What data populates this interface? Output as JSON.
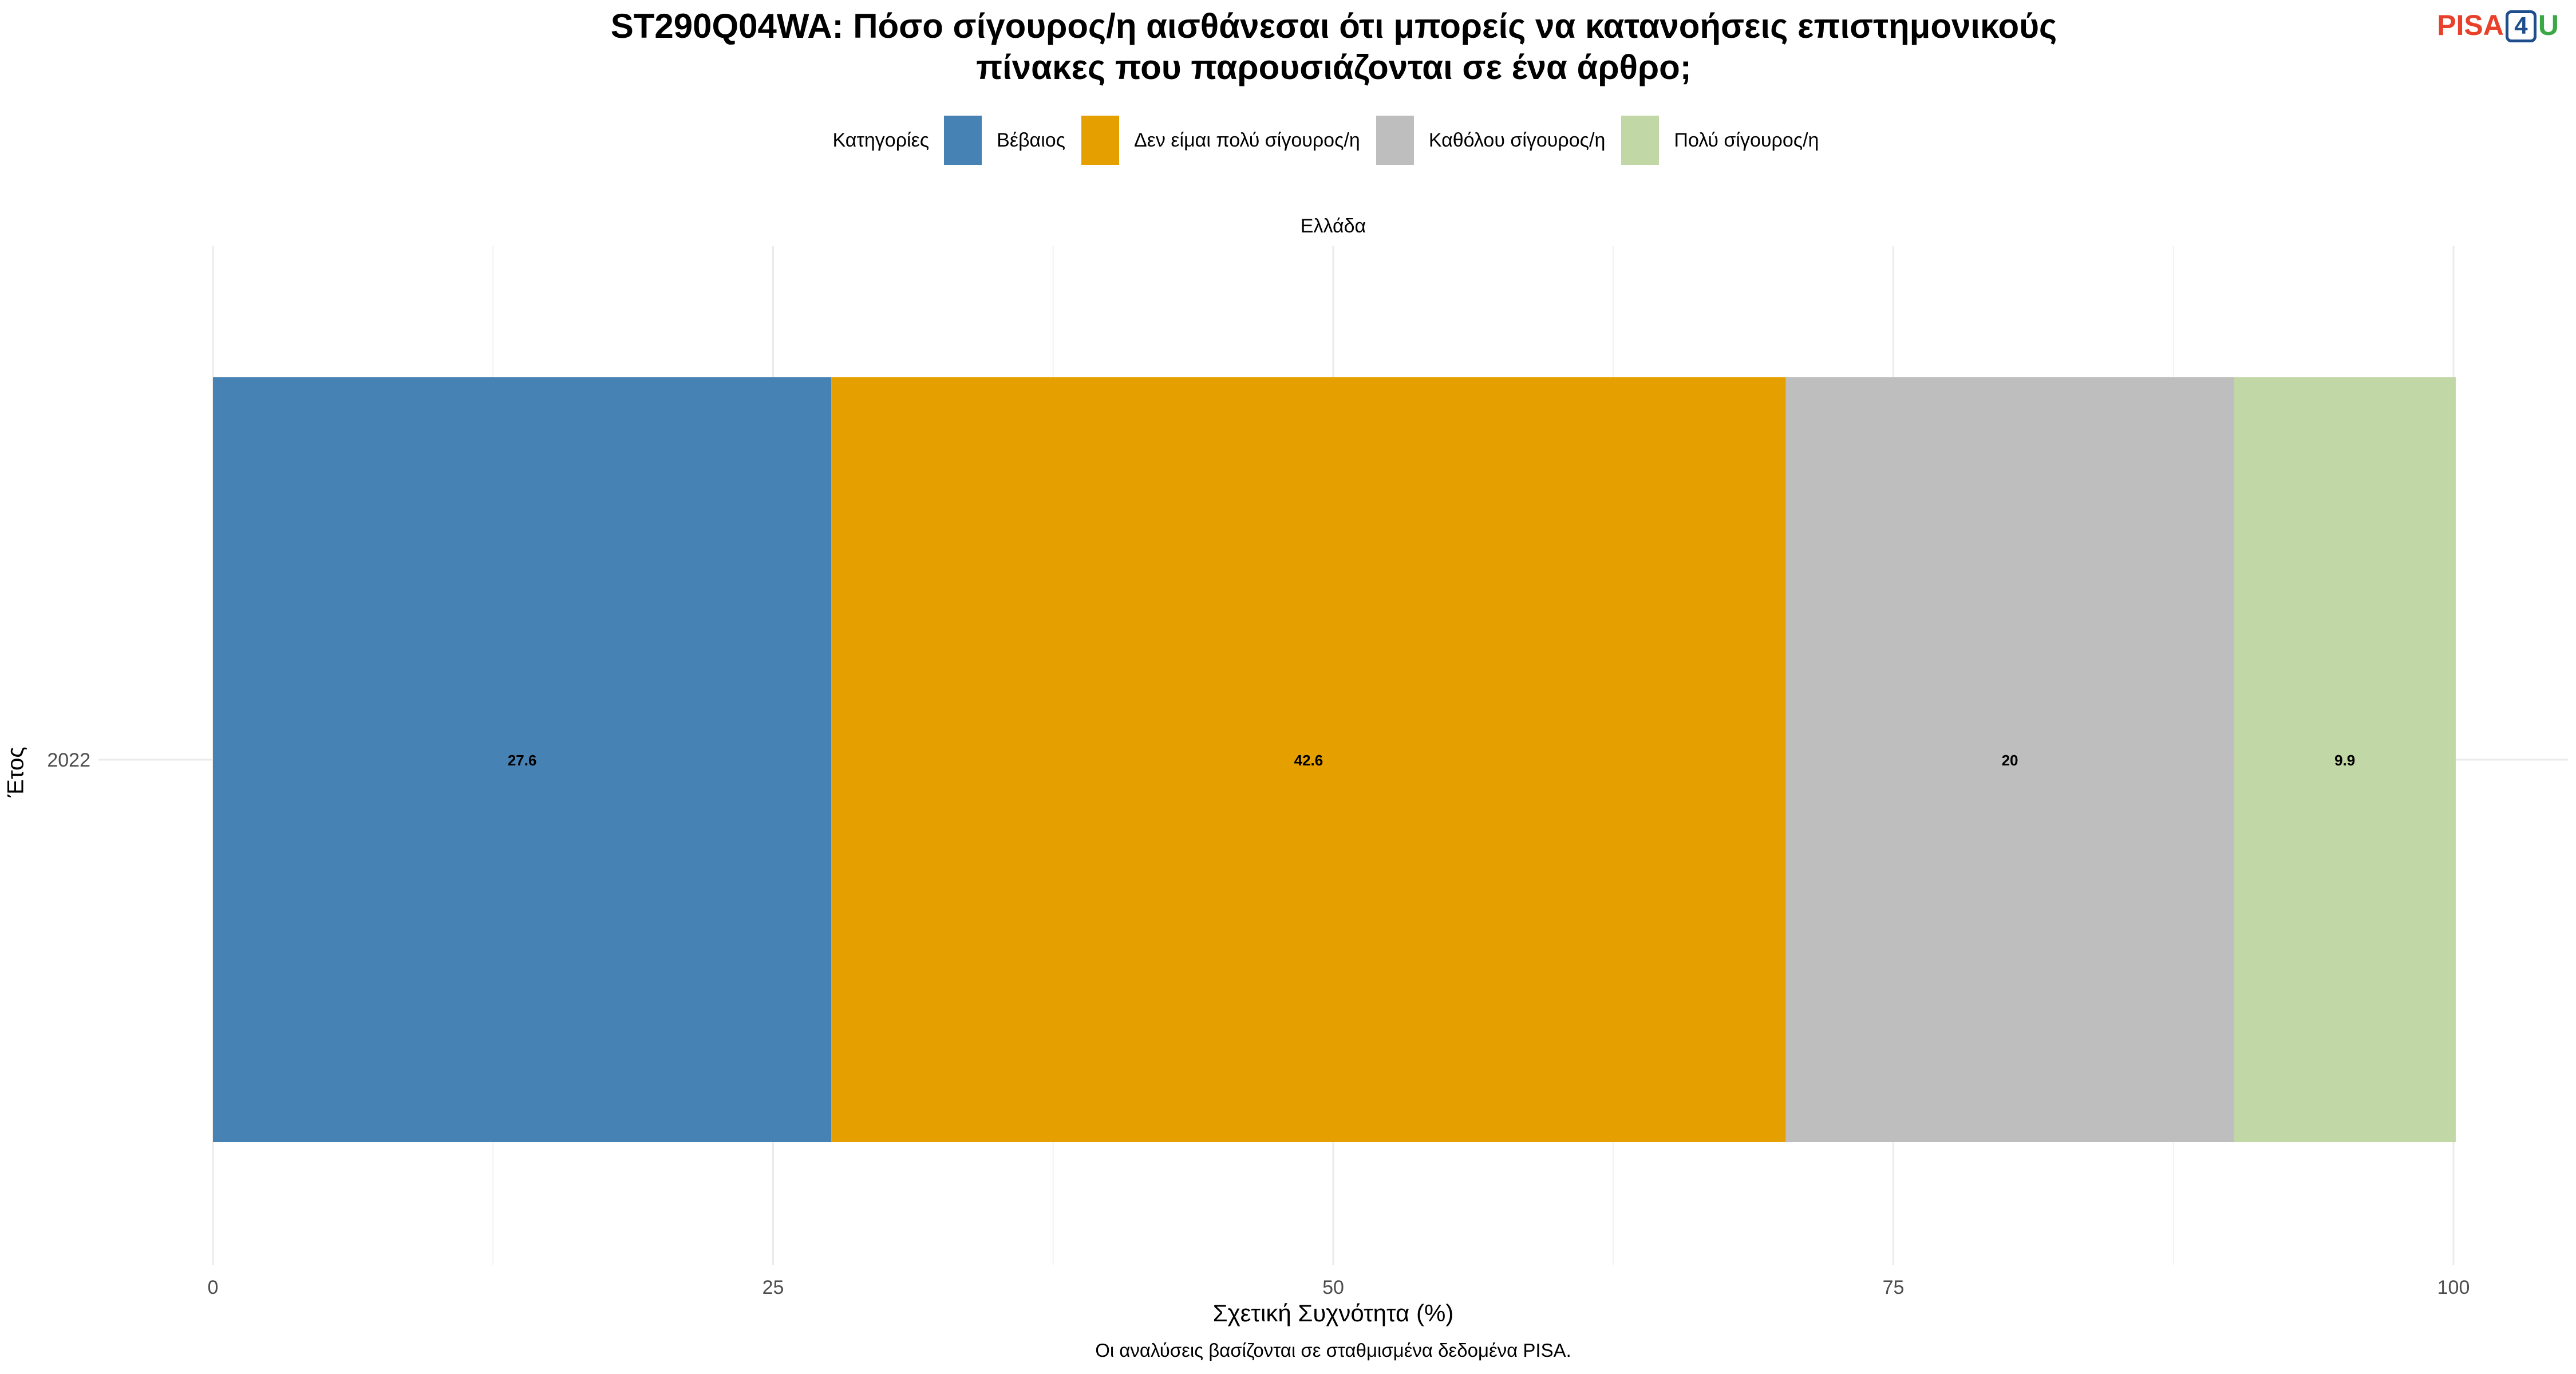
{
  "title_line1": "ST290Q04WA: Πόσο σίγουρος/η αισθάνεσαι ότι μπορείς να κατανοήσεις επιστημονικούς",
  "title_line2": "πίνακες που παρουσιάζονται σε ένα άρθρο;",
  "logo": {
    "pisa": "PISA",
    "four": "4",
    "u": "U"
  },
  "legend_title": "Κατηγορίες",
  "facet_label": "Ελλάδα",
  "caption": "Οι αναλύσεις βασίζονται σε σταθμισμένα δεδομένα PISA.",
  "chart_data": {
    "type": "bar",
    "orientation": "horizontal",
    "stacked": true,
    "categories": [
      "2022"
    ],
    "series": [
      {
        "name": "Βέβαιος",
        "values": [
          27.6
        ],
        "color": "#4682b4"
      },
      {
        "name": "Δεν είμαι πολύ σίγουρος/η",
        "values": [
          42.6
        ],
        "color": "#e5a000"
      },
      {
        "name": "Καθόλου σίγουρος/η",
        "values": [
          20
        ],
        "color": "#bebebe"
      },
      {
        "name": "Πολύ σίγουρος/η",
        "values": [
          9.9
        ],
        "color": "#c2d7a6"
      }
    ],
    "data_labels": [
      "27.6",
      "42.6",
      "20",
      "9.9"
    ],
    "xlabel": "Σχετική Συχνότητα (%)",
    "ylabel": "Έτος",
    "xlim": [
      0,
      100
    ],
    "xticks": [
      0,
      25,
      50,
      75,
      100
    ],
    "grid": true,
    "legend_position": "top"
  }
}
